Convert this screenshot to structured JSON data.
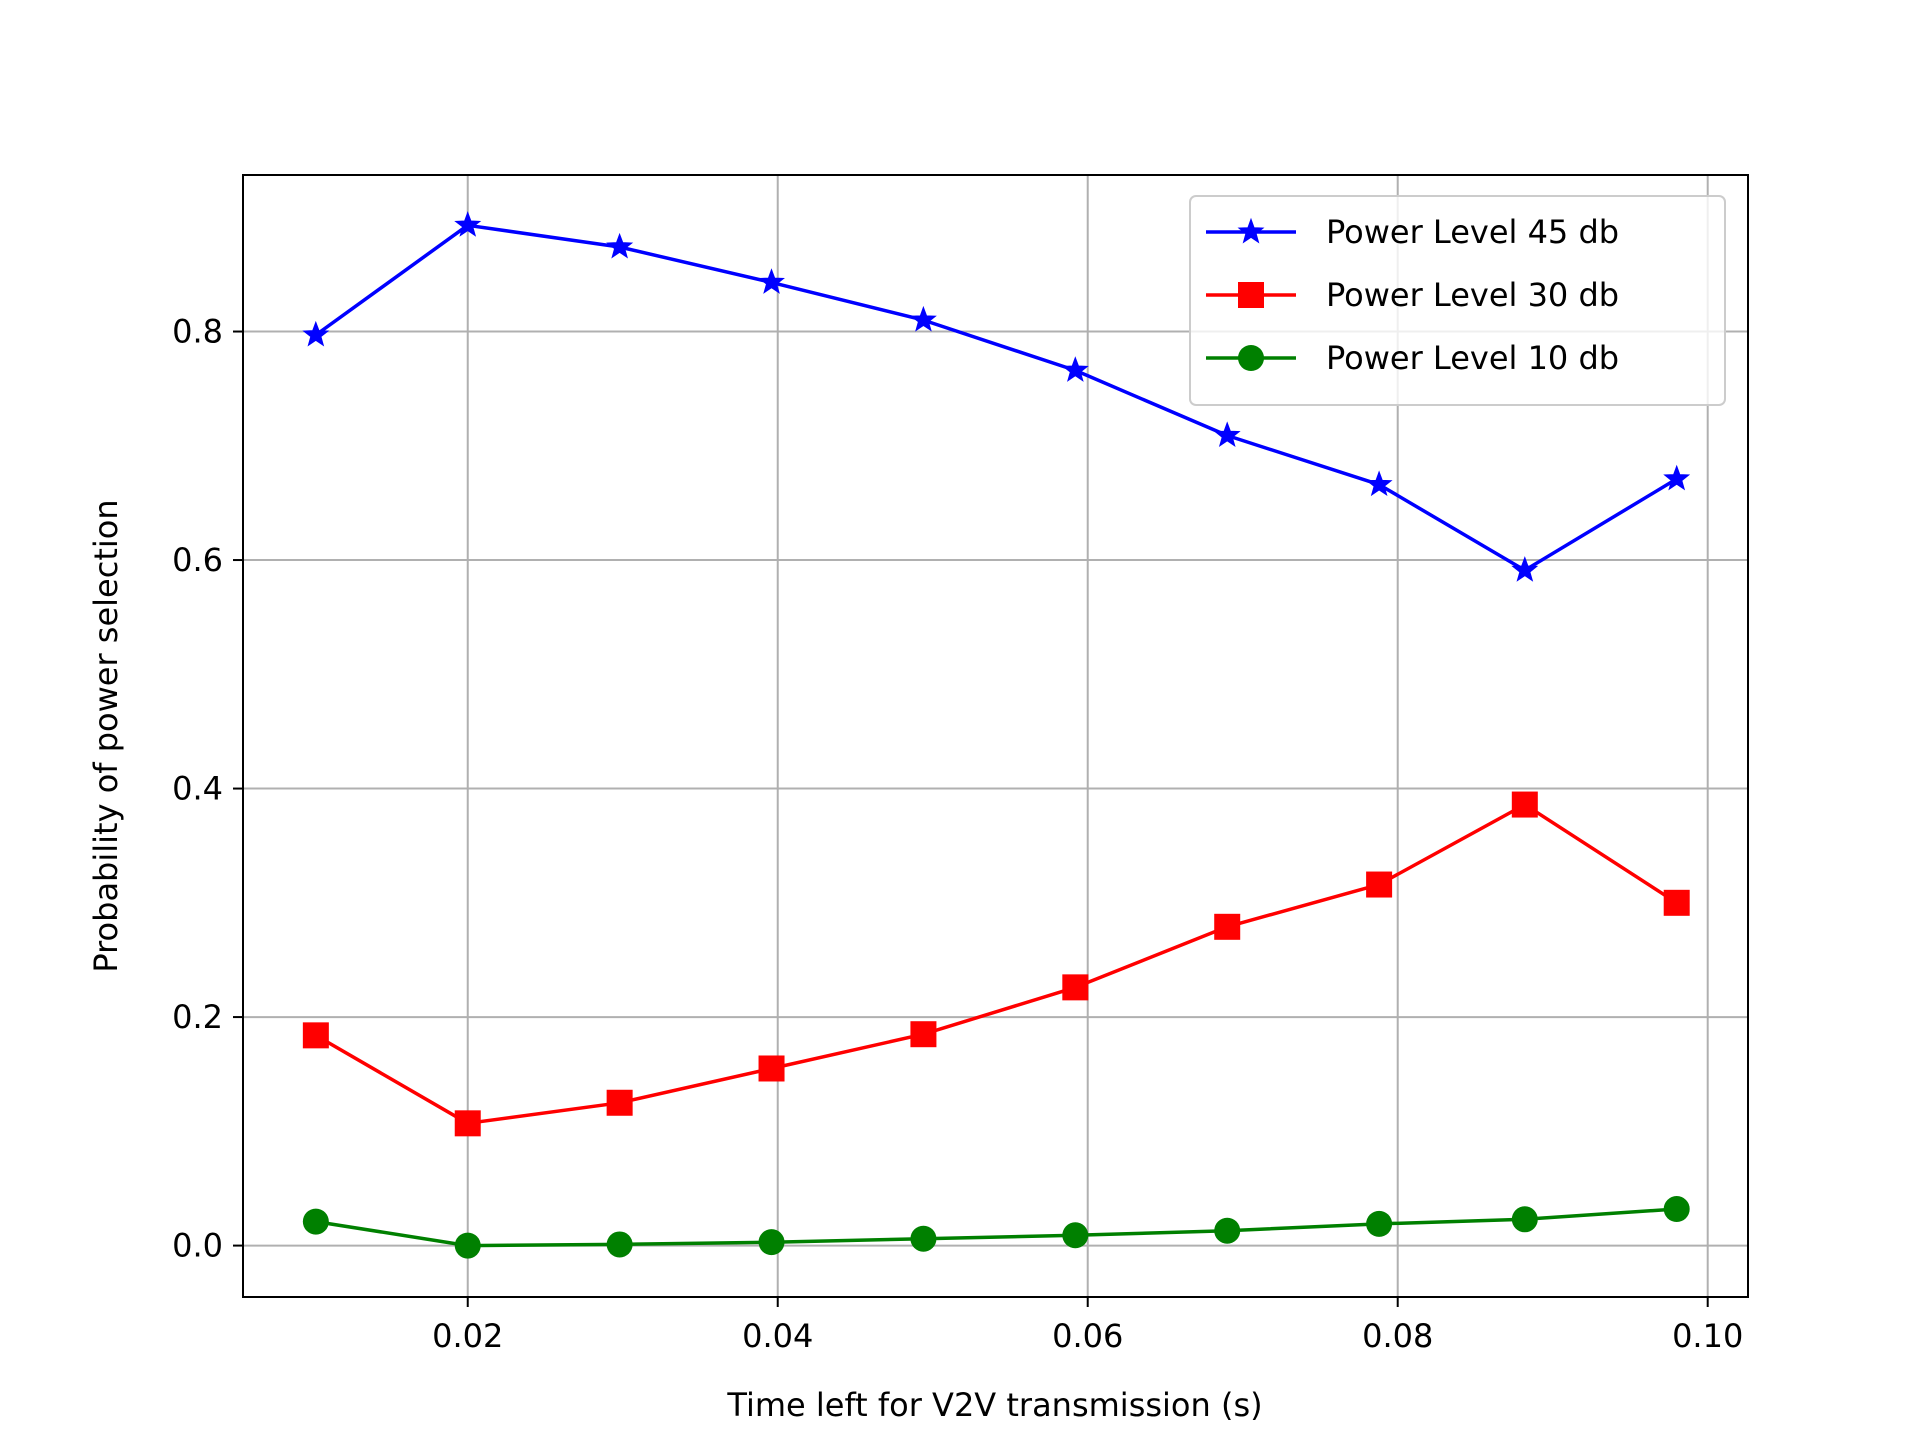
{
  "chart_data": {
    "type": "line",
    "title": "",
    "xlabel": "Time left for V2V transmission (s)",
    "ylabel": "Probability of power selection",
    "xlim": [
      0.0055,
      0.1026
    ],
    "ylim": [
      -0.045,
      0.937
    ],
    "xticks": [
      0.02,
      0.04,
      0.06,
      0.08,
      0.1
    ],
    "xtick_labels": [
      "0.02",
      "0.04",
      "0.06",
      "0.08",
      "0.10"
    ],
    "yticks": [
      0.0,
      0.2,
      0.4,
      0.6,
      0.8
    ],
    "ytick_labels": [
      "0.0",
      "0.2",
      "0.4",
      "0.6",
      "0.8"
    ],
    "grid": true,
    "legend_position": "top-right",
    "x": [
      0.0102,
      0.02,
      0.0298,
      0.0396,
      0.0494,
      0.0592,
      0.069,
      0.0788,
      0.0882,
      0.098
    ],
    "series": [
      {
        "name": "Power Level 45 db",
        "color": "#0000ff",
        "marker": "star",
        "values": [
          0.797,
          0.893,
          0.874,
          0.843,
          0.81,
          0.766,
          0.709,
          0.666,
          0.591,
          0.671
        ]
      },
      {
        "name": "Power Level 30 db",
        "color": "#ff0000",
        "marker": "square",
        "values": [
          0.184,
          0.107,
          0.125,
          0.155,
          0.185,
          0.226,
          0.279,
          0.316,
          0.386,
          0.3
        ]
      },
      {
        "name": "Power Level 10 db",
        "color": "#008000",
        "marker": "circle",
        "values": [
          0.021,
          0.0,
          0.001,
          0.003,
          0.006,
          0.009,
          0.013,
          0.019,
          0.023,
          0.032
        ]
      }
    ]
  }
}
